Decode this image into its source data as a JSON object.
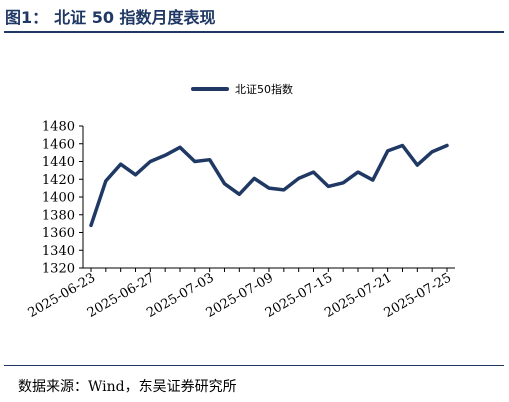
{
  "header": {
    "figure_number": "图1：",
    "title": "北证 50 指数月度表现"
  },
  "footer": {
    "source": "数据来源：Wind，东吴证券研究所"
  },
  "colors": {
    "series": "#1f3864",
    "axis": "#000000",
    "rule": "#1f3864"
  },
  "chart_data": {
    "type": "line",
    "title": "",
    "xlabel": "",
    "ylabel": "",
    "ylim": [
      1320,
      1480
    ],
    "yticks": [
      1320,
      1340,
      1360,
      1380,
      1400,
      1420,
      1440,
      1460,
      1480
    ],
    "grid": false,
    "legend_position": "top",
    "x_tick_labels": [
      "2025-06-23",
      "2025-06-27",
      "2025-07-03",
      "2025-07-09",
      "2025-07-15",
      "2025-07-21",
      "2025-07-25"
    ],
    "x": [
      "2025-06-23",
      "2025-06-24",
      "2025-06-25",
      "2025-06-26",
      "2025-06-27",
      "2025-06-30",
      "2025-07-01",
      "2025-07-02",
      "2025-07-03",
      "2025-07-04",
      "2025-07-07",
      "2025-07-08",
      "2025-07-09",
      "2025-07-10",
      "2025-07-11",
      "2025-07-14",
      "2025-07-15",
      "2025-07-16",
      "2025-07-17",
      "2025-07-18",
      "2025-07-21",
      "2025-07-22",
      "2025-07-23",
      "2025-07-24",
      "2025-07-25"
    ],
    "series": [
      {
        "name": "北证50指数",
        "values": [
          1368,
          1418,
          1437,
          1425,
          1440,
          1447,
          1456,
          1440,
          1442,
          1415,
          1403,
          1421,
          1410,
          1408,
          1421,
          1428,
          1412,
          1416,
          1428,
          1419,
          1452,
          1458,
          1436,
          1451,
          1458
        ]
      }
    ]
  }
}
